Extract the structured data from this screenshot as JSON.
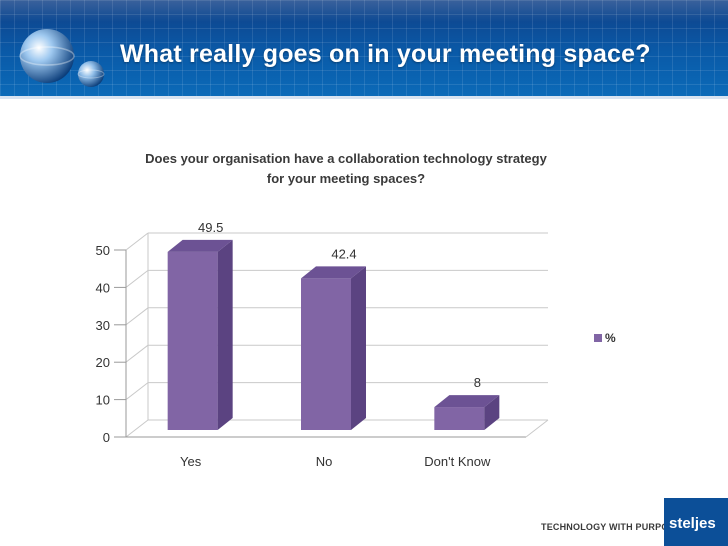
{
  "slide": {
    "title": "What really goes on in your meeting space?"
  },
  "footer": {
    "tagline": "TECHNOLOGY WITH PURPOSE",
    "brand": "steljes"
  },
  "colors": {
    "banner": "#0c56a3",
    "bar_front": "#8165a5",
    "bar_side": "#5b4381",
    "bar_top": "#6c5294"
  },
  "chart_data": {
    "type": "bar",
    "title": "Does your organisation have a collaboration technology strategy for your meeting spaces?",
    "title_lines": [
      "Does your organisation have a collaboration technology strategy",
      "for your meeting spaces?"
    ],
    "categories": [
      "Yes",
      "No",
      "Don't Know"
    ],
    "series": [
      {
        "name": "%",
        "values": [
          49.5,
          42.4,
          8
        ]
      }
    ],
    "data_labels": [
      "49.5",
      "42.4",
      "8"
    ],
    "yticks": [
      0,
      10,
      20,
      30,
      40,
      50
    ],
    "ylim": [
      0,
      50
    ],
    "legend": "right",
    "grid": true,
    "style": "3d-column"
  }
}
